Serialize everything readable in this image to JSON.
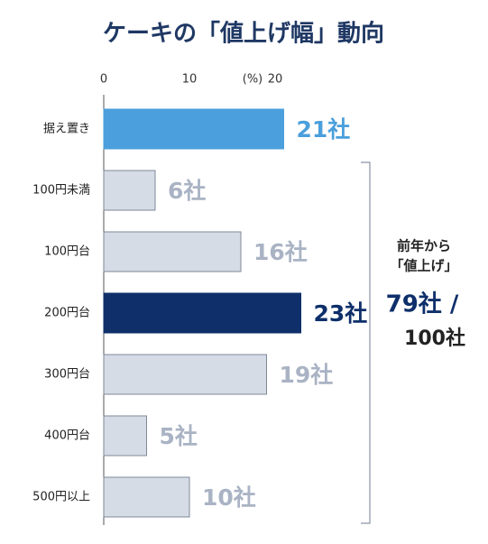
{
  "chart_data": {
    "type": "bar",
    "orientation": "horizontal",
    "title": "ケーキの「値上げ幅」動向",
    "axis_unit": "(%)",
    "categories": [
      "据え置き",
      "100円未満",
      "100円台",
      "200円台",
      "300円台",
      "400円台",
      "500円以上"
    ],
    "values": [
      21,
      6,
      16,
      23,
      19,
      5,
      10
    ],
    "value_labels": [
      "21社",
      "6社",
      "16社",
      "23社",
      "19社",
      "5社",
      "10社"
    ],
    "colors": [
      "#4a9fdc",
      "#d6dce6",
      "#d6dce6",
      "#0e2f6a",
      "#d6dce6",
      "#d6dce6",
      "#d6dce6"
    ],
    "label_colors": [
      "#4a9fdc",
      "#a9b3c4",
      "#a9b3c4",
      "#0e2f6a",
      "#a9b3c4",
      "#a9b3c4",
      "#a9b3c4"
    ],
    "xlim": [
      0,
      20
    ],
    "xticks": [
      0,
      10,
      20
    ],
    "annotation": {
      "lines": [
        "前年から",
        "「値上げ」"
      ],
      "highlight": "79社 /",
      "total": "100社"
    }
  }
}
